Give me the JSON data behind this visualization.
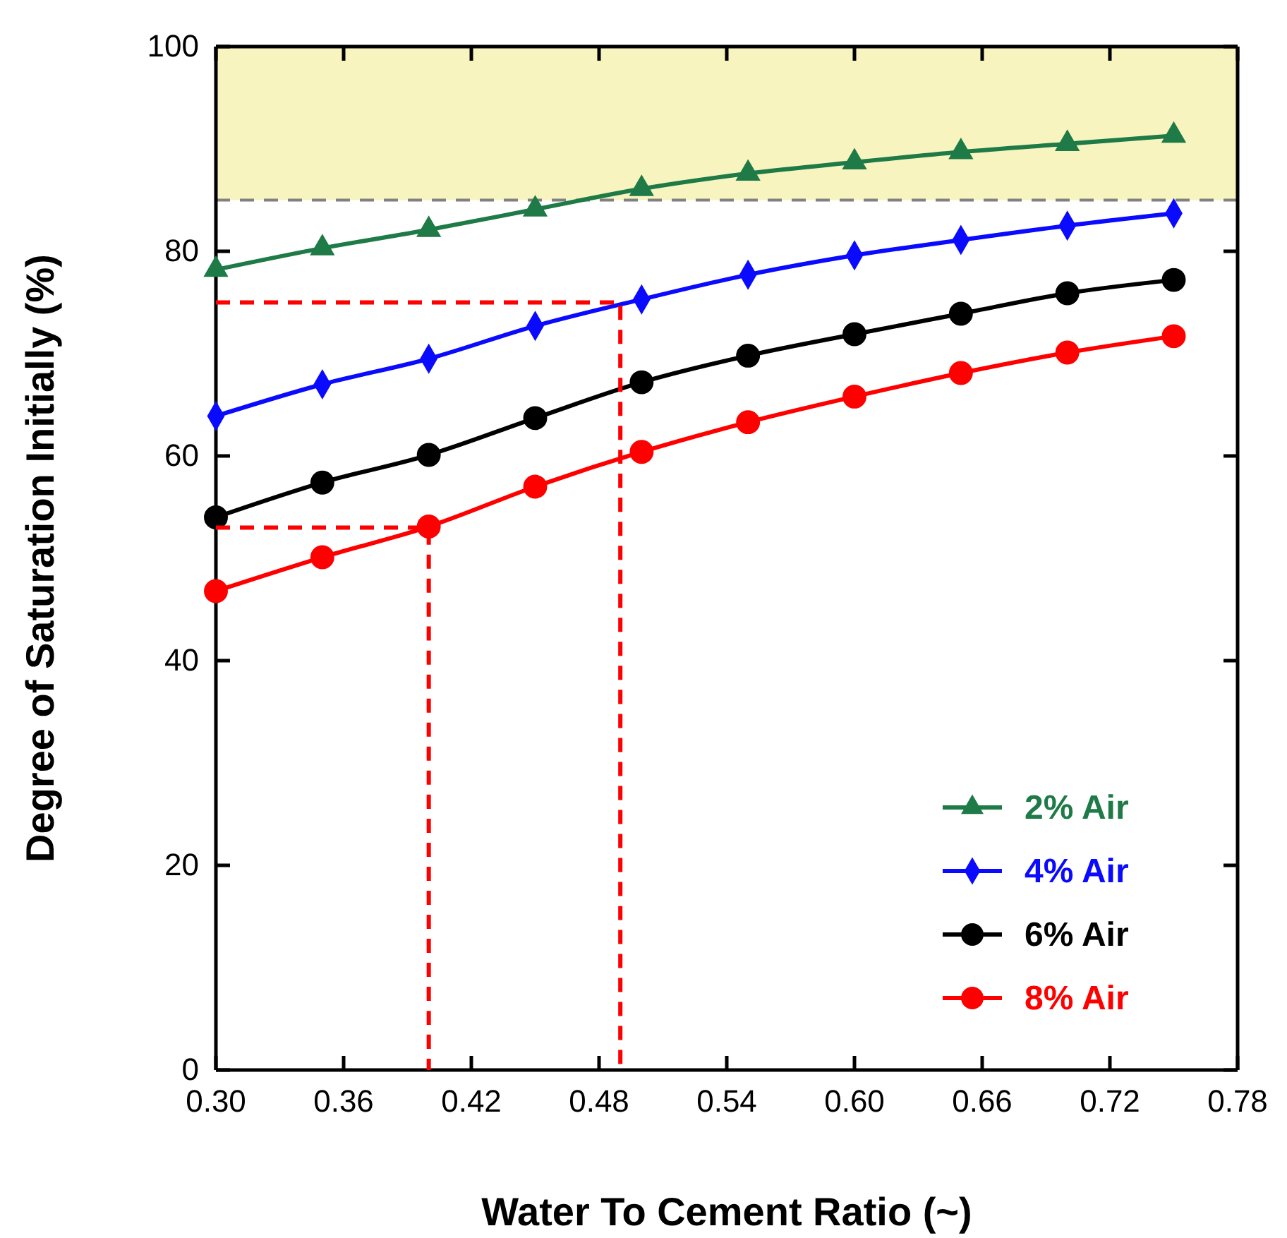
{
  "chart_data": {
    "type": "line",
    "xlabel": "Water To Cement Ratio (~)",
    "ylabel": "Degree of Saturation Initially (%)",
    "xlim": [
      0.3,
      0.78
    ],
    "xticks": [
      {
        "value": 0.3,
        "label": "0.30"
      },
      {
        "value": 0.36,
        "label": "0.36"
      },
      {
        "value": 0.42,
        "label": "0.42"
      },
      {
        "value": 0.48,
        "label": "0.48"
      },
      {
        "value": 0.54,
        "label": "0.54"
      },
      {
        "value": 0.6,
        "label": "0.60"
      },
      {
        "value": 0.66,
        "label": "0.66"
      },
      {
        "value": 0.72,
        "label": "0.72"
      },
      {
        "value": 0.78,
        "label": "0.78"
      }
    ],
    "ylim": [
      0,
      100
    ],
    "yticks": [
      0,
      20,
      40,
      60,
      80,
      100
    ],
    "x": [
      0.3,
      0.35,
      0.4,
      0.45,
      0.5,
      0.55,
      0.6,
      0.65,
      0.7,
      0.75
    ],
    "legend": "bottom right",
    "line_style": "solid",
    "bands": [
      {
        "axis": "y",
        "from": 85,
        "to": 100,
        "color": "#f8f4c0"
      }
    ],
    "ref_lines": [
      {
        "axis": "y",
        "value": 85,
        "color": "#808080",
        "line_style": "dashed"
      }
    ],
    "series": [
      {
        "name": "2% Air",
        "color": "#1e7a46",
        "marker": "triangle",
        "values": [
          78.2,
          80.3,
          82.1,
          84.1,
          86.1,
          87.6,
          88.7,
          89.7,
          90.5,
          91.3
        ]
      },
      {
        "name": "4% Air",
        "color": "#0a0aff",
        "marker": "diamond",
        "values": [
          63.9,
          67.0,
          69.5,
          72.7,
          75.3,
          77.7,
          79.6,
          81.1,
          82.5,
          83.7
        ]
      },
      {
        "name": "6% Air",
        "color": "#000000",
        "marker": "circle",
        "values": [
          54.0,
          57.4,
          60.1,
          63.7,
          67.2,
          69.8,
          71.9,
          73.9,
          75.9,
          77.2
        ]
      },
      {
        "name": "8% Air",
        "color": "#ff0000",
        "marker": "circle",
        "values": [
          46.8,
          50.1,
          53.1,
          57.0,
          60.4,
          63.3,
          65.8,
          68.1,
          70.1,
          71.7
        ]
      },
      {
        "type": "line",
        "x": [
          0.3,
          0.49,
          0.49
        ],
        "values": [
          75,
          75,
          0
        ],
        "color": "#ff0000",
        "marker": "none",
        "line_style": "dashed"
      },
      {
        "type": "line",
        "x": [
          0.3,
          0.4,
          0.4
        ],
        "values": [
          53,
          53,
          0
        ],
        "color": "#ff0000",
        "marker": "none",
        "line_style": "dashed"
      }
    ]
  }
}
